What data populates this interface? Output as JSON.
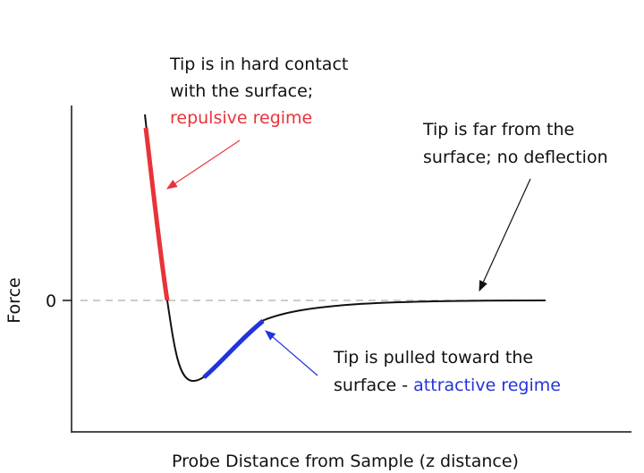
{
  "axes": {
    "y_label": "Force",
    "zero_label": "0",
    "x_label": "Probe Distance from Sample (z distance)"
  },
  "annotations": {
    "repulsive": {
      "lines": [
        "Tip is in hard contact",
        "with the surface;"
      ],
      "regime": "repulsive regime"
    },
    "far": {
      "lines": [
        "Tip is far from the",
        "surface; no deflection"
      ]
    },
    "attractive": {
      "lines": [
        "Tip is pulled toward the"
      ],
      "prefix": "surface - ",
      "regime": "attractive regime"
    }
  }
}
